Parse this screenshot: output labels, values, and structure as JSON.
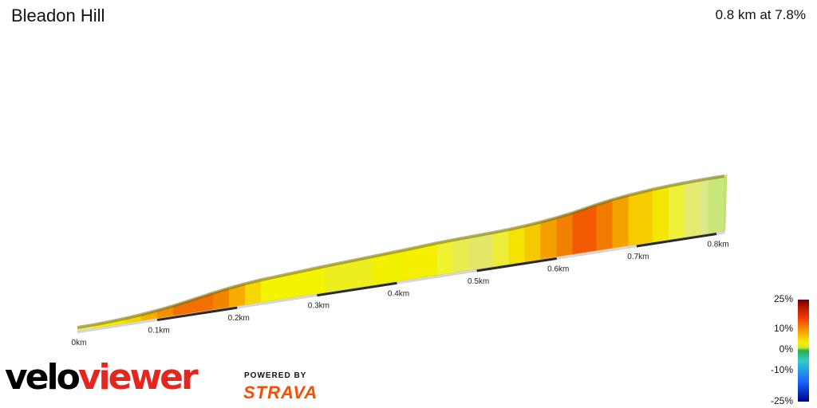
{
  "header": {
    "title": "Bleadon Hill",
    "summary": "0.8 km at 7.8%"
  },
  "chart_data": {
    "type": "area",
    "title": "Bleadon Hill",
    "subtitle": "0.8 km at 7.8%",
    "x_unit": "km",
    "xlim": [
      0,
      0.8
    ],
    "x_ticks": [
      "0km",
      "0.1km",
      "0.2km",
      "0.3km",
      "0.4km",
      "0.5km",
      "0.6km",
      "0.7km",
      "0.8km"
    ],
    "segments": [
      {
        "to": 0.02,
        "grade": 1,
        "color": "#eef06a"
      },
      {
        "to": 0.04,
        "grade": 4,
        "color": "#f2f200"
      },
      {
        "to": 0.06,
        "grade": 6,
        "color": "#f6ea00"
      },
      {
        "to": 0.08,
        "grade": 8,
        "color": "#f6d200"
      },
      {
        "to": 0.1,
        "grade": 11,
        "color": "#f6b000"
      },
      {
        "to": 0.12,
        "grade": 13,
        "color": "#f49000"
      },
      {
        "to": 0.17,
        "grade": 17,
        "color": "#f26f00"
      },
      {
        "to": 0.19,
        "grade": 15,
        "color": "#f28400"
      },
      {
        "to": 0.21,
        "grade": 12,
        "color": "#f6ac00"
      },
      {
        "to": 0.23,
        "grade": 9,
        "color": "#f6d800"
      },
      {
        "to": 0.31,
        "grade": 6,
        "color": "#f4f300"
      },
      {
        "to": 0.37,
        "grade": 5,
        "color": "#ecee20"
      },
      {
        "to": 0.41,
        "grade": 5,
        "color": "#f2f200"
      },
      {
        "to": 0.45,
        "grade": 6,
        "color": "#f4f000"
      },
      {
        "to": 0.47,
        "grade": 4,
        "color": "#eff230"
      },
      {
        "to": 0.49,
        "grade": 3,
        "color": "#e8ec50"
      },
      {
        "to": 0.52,
        "grade": 3,
        "color": "#e4e868"
      },
      {
        "to": 0.54,
        "grade": 4,
        "color": "#ecee3a"
      },
      {
        "to": 0.56,
        "grade": 7,
        "color": "#f6e200"
      },
      {
        "to": 0.58,
        "grade": 9,
        "color": "#f6c800"
      },
      {
        "to": 0.6,
        "grade": 12,
        "color": "#f4a000"
      },
      {
        "to": 0.62,
        "grade": 15,
        "color": "#f28000"
      },
      {
        "to": 0.65,
        "grade": 19,
        "color": "#f25a00"
      },
      {
        "to": 0.67,
        "grade": 16,
        "color": "#f27a00"
      },
      {
        "to": 0.69,
        "grade": 12,
        "color": "#f4a200"
      },
      {
        "to": 0.72,
        "grade": 9,
        "color": "#f6cc00"
      },
      {
        "to": 0.74,
        "grade": 6,
        "color": "#f4e600"
      },
      {
        "to": 0.76,
        "grade": 4,
        "color": "#eef03a"
      },
      {
        "to": 0.78,
        "grade": 3,
        "color": "#e6ea70"
      },
      {
        "to": 0.79,
        "grade": 2,
        "color": "#dde88a"
      },
      {
        "to": 0.81,
        "grade": 1,
        "color": "#c8e67a"
      }
    ],
    "legend": {
      "title": "gradient",
      "labels": [
        "25%",
        "10%",
        "0%",
        "-10%",
        "-25%"
      ],
      "colors": [
        "#6b0000",
        "#f24a00",
        "#f2f200",
        "#22b14c",
        "#1a66ff",
        "#00008b"
      ]
    }
  },
  "branding": {
    "logo_part1": "velo",
    "logo_part2": "viewer",
    "powered_by": "POWERED BY",
    "strava": "STRAVA"
  }
}
